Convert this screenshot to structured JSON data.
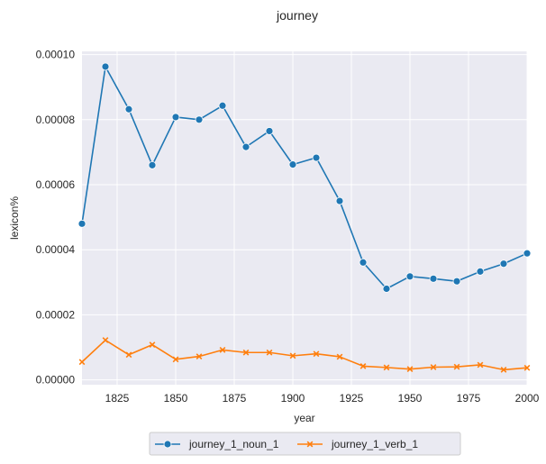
{
  "chart_data": {
    "type": "line",
    "title": "journey",
    "xlabel": "year",
    "ylabel": "lexicon%",
    "xlim": [
      1810,
      2000
    ],
    "ylim": [
      -1.5e-06,
      0.000101
    ],
    "xticks": [
      1825,
      1850,
      1875,
      1900,
      1925,
      1950,
      1975,
      2000
    ],
    "xtick_labels": [
      "1825",
      "1850",
      "1875",
      "1900",
      "1925",
      "1950",
      "1975",
      "2000"
    ],
    "yticks": [
      0,
      2e-05,
      4e-05,
      6e-05,
      8e-05,
      0.0001
    ],
    "ytick_labels": [
      "0.00000",
      "0.00002",
      "0.00004",
      "0.00006",
      "0.00008",
      "0.00010"
    ],
    "grid": true,
    "legend_position": "bottom-center",
    "x": [
      1810,
      1820,
      1830,
      1840,
      1850,
      1860,
      1870,
      1880,
      1890,
      1900,
      1910,
      1920,
      1930,
      1940,
      1950,
      1960,
      1970,
      1980,
      1990,
      2000
    ],
    "series": [
      {
        "name": "journey_1_noun_1",
        "color": "#1f77b4",
        "marker": "circle",
        "values": [
          4.8e-05,
          9.63e-05,
          8.32e-05,
          6.6e-05,
          8.08e-05,
          8e-05,
          8.43e-05,
          7.16e-05,
          7.65e-05,
          6.62e-05,
          6.83e-05,
          5.5e-05,
          3.61e-05,
          2.8e-05,
          3.18e-05,
          3.11e-05,
          3.03e-05,
          3.33e-05,
          3.57e-05,
          3.89e-05
        ]
      },
      {
        "name": "journey_1_verb_1",
        "color": "#ff7f0e",
        "marker": "x",
        "values": [
          5.5e-06,
          1.22e-05,
          7.7e-06,
          1.08e-05,
          6.3e-06,
          7.2e-06,
          9.2e-06,
          8.4e-06,
          8.4e-06,
          7.4e-06,
          8e-06,
          7.1e-06,
          4.2e-06,
          3.8e-06,
          3.3e-06,
          3.9e-06,
          4e-06,
          4.6e-06,
          3.1e-06,
          3.7e-06
        ]
      }
    ]
  },
  "colors": {
    "plot_background": "#eaeaf2",
    "grid": "#ffffff"
  }
}
